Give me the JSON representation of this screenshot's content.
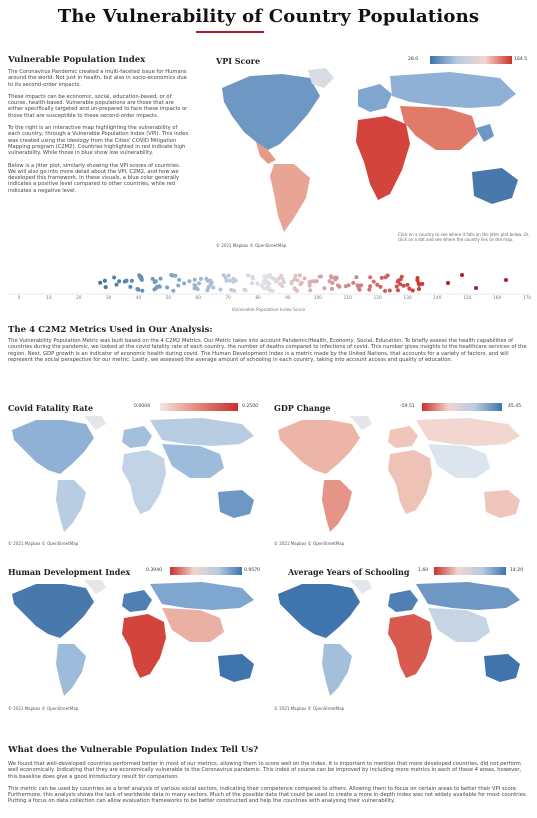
{
  "header": {
    "title": "The Vulnerability of Country Populations"
  },
  "intro": {
    "heading": "Vulnerable Population Index",
    "paragraphs": [
      "The Coronavirus Pandemic created a multi-faceted issue for Humans around the world. Not just in health, but also in socio-economics due to its second-order impacts.",
      "These impacts can be economic, social, education-based, or of course, health-based. Vulnerable populations are those that are either specifically targeted and un-prepared to face these impacts or those that are susceptible to these second-order impacts.",
      "To the right is an interactive map highlighting the vulnerability of each country, through a Vulnerable Population Index (VPI). This index was created using the ideology from the Cities' COVID Mitigation Mapping program (C2M2). Countries highlighted in red indicate high vulnerability. While those in blue show low vulnerability.",
      "Below is a jitter plot, similarly showing the VPI scores of countries. We will also go into more detail about the VPI, C2M2, and how we developed this framework. In these visuals, a blue color generally indicates a positive level compared to other countries, while red indicates a negative level."
    ]
  },
  "vpi_map": {
    "title": "VPI Score",
    "legend_min": "28.0",
    "legend_max": "164.5",
    "copyright": "© 2021 Mapbox © OpenStreetMap",
    "hint": "Click on a country to see where it falls on the jitter plot below. Or, click on a dot and see where the country lies on the map."
  },
  "jitter": {
    "axis_label": "Vulnerable Population Index Score",
    "ticks": [
      "0",
      "10",
      "20",
      "30",
      "40",
      "50",
      "60",
      "70",
      "80",
      "90",
      "100",
      "110",
      "120",
      "130",
      "140",
      "150",
      "160",
      "170"
    ]
  },
  "metrics": {
    "heading": "The 4 C2M2 Metrics Used in Our Analysis:",
    "text": "The Vulnerability Population Metric was built based on the 4 C2M2 Metrics. Our Metric takes into account Pandemic/Health, Economy, Social, Education. To briefly assess the health capabilities of countries during the pandemic, we looked at the covid fatality rate of each country, the number of deaths compared to infections of covid. This number gives insights to the healthcare services of the region. Next, GDP growth is an indicator of economic health during covid. The Human Development Index is a metric made by the United Nations, that accounts for a variety of factors, and will represent the social perspective for our metric. Lastly, we assessed the average amount of schooling in each country, taking into account access and quality of education."
  },
  "maps": {
    "covid": {
      "title": "Covid Fatality Rate",
      "legend_min": "0.0004",
      "legend_max": "0.2500",
      "copyright": "© 2021 Mapbox © OpenStreetMap"
    },
    "gdp": {
      "title": "GDP Change",
      "legend_min": "-59.51",
      "legend_max": "45.45",
      "copyright": "© 2021 Mapbox © OpenStreetMap"
    },
    "hdi": {
      "title": "Human Development Index",
      "legend_min": "0.3940",
      "legend_max": "0.9570",
      "copyright": "© 2021 Mapbox © OpenStreetMap"
    },
    "school": {
      "title": "Average Years of Schooling",
      "legend_min": "1.60",
      "legend_max": "14.20",
      "copyright": "© 2021 Mapbox © OpenStreetMap"
    }
  },
  "conclusion": {
    "heading": "What does the Vulnerable Population Index Tell Us?",
    "paragraphs": [
      "We found that well-developed countries performed better in most of our metrics, allowing them to score well on the index. It is important to mention that more developed countries, did not perform well economically. Indicating that they are economically vulnerable to the Coronavirus pandemic. This index of course can be improved by including more metrics in each of these 4 areas, however, this baseline does give a good introductory result for comparison.",
      "This metric can be used by countries as a brief analysis of various social sectors, indicating their competence compared to others. Allowing them to focus on certain areas to better their VPI score. Furthermore, this analysis shows the lack of worldwide data in many sectors. Much of the possible data that could be used to create a more in-depth index was not widely available for most countries. Putting a focus on data collection can allow evaluation frameworks to be better constructed and help the countries with analysing their vulnerability."
    ]
  },
  "colors": {
    "accent": "#b8142a",
    "low": "#4f7fb3",
    "high": "#c9302c"
  }
}
